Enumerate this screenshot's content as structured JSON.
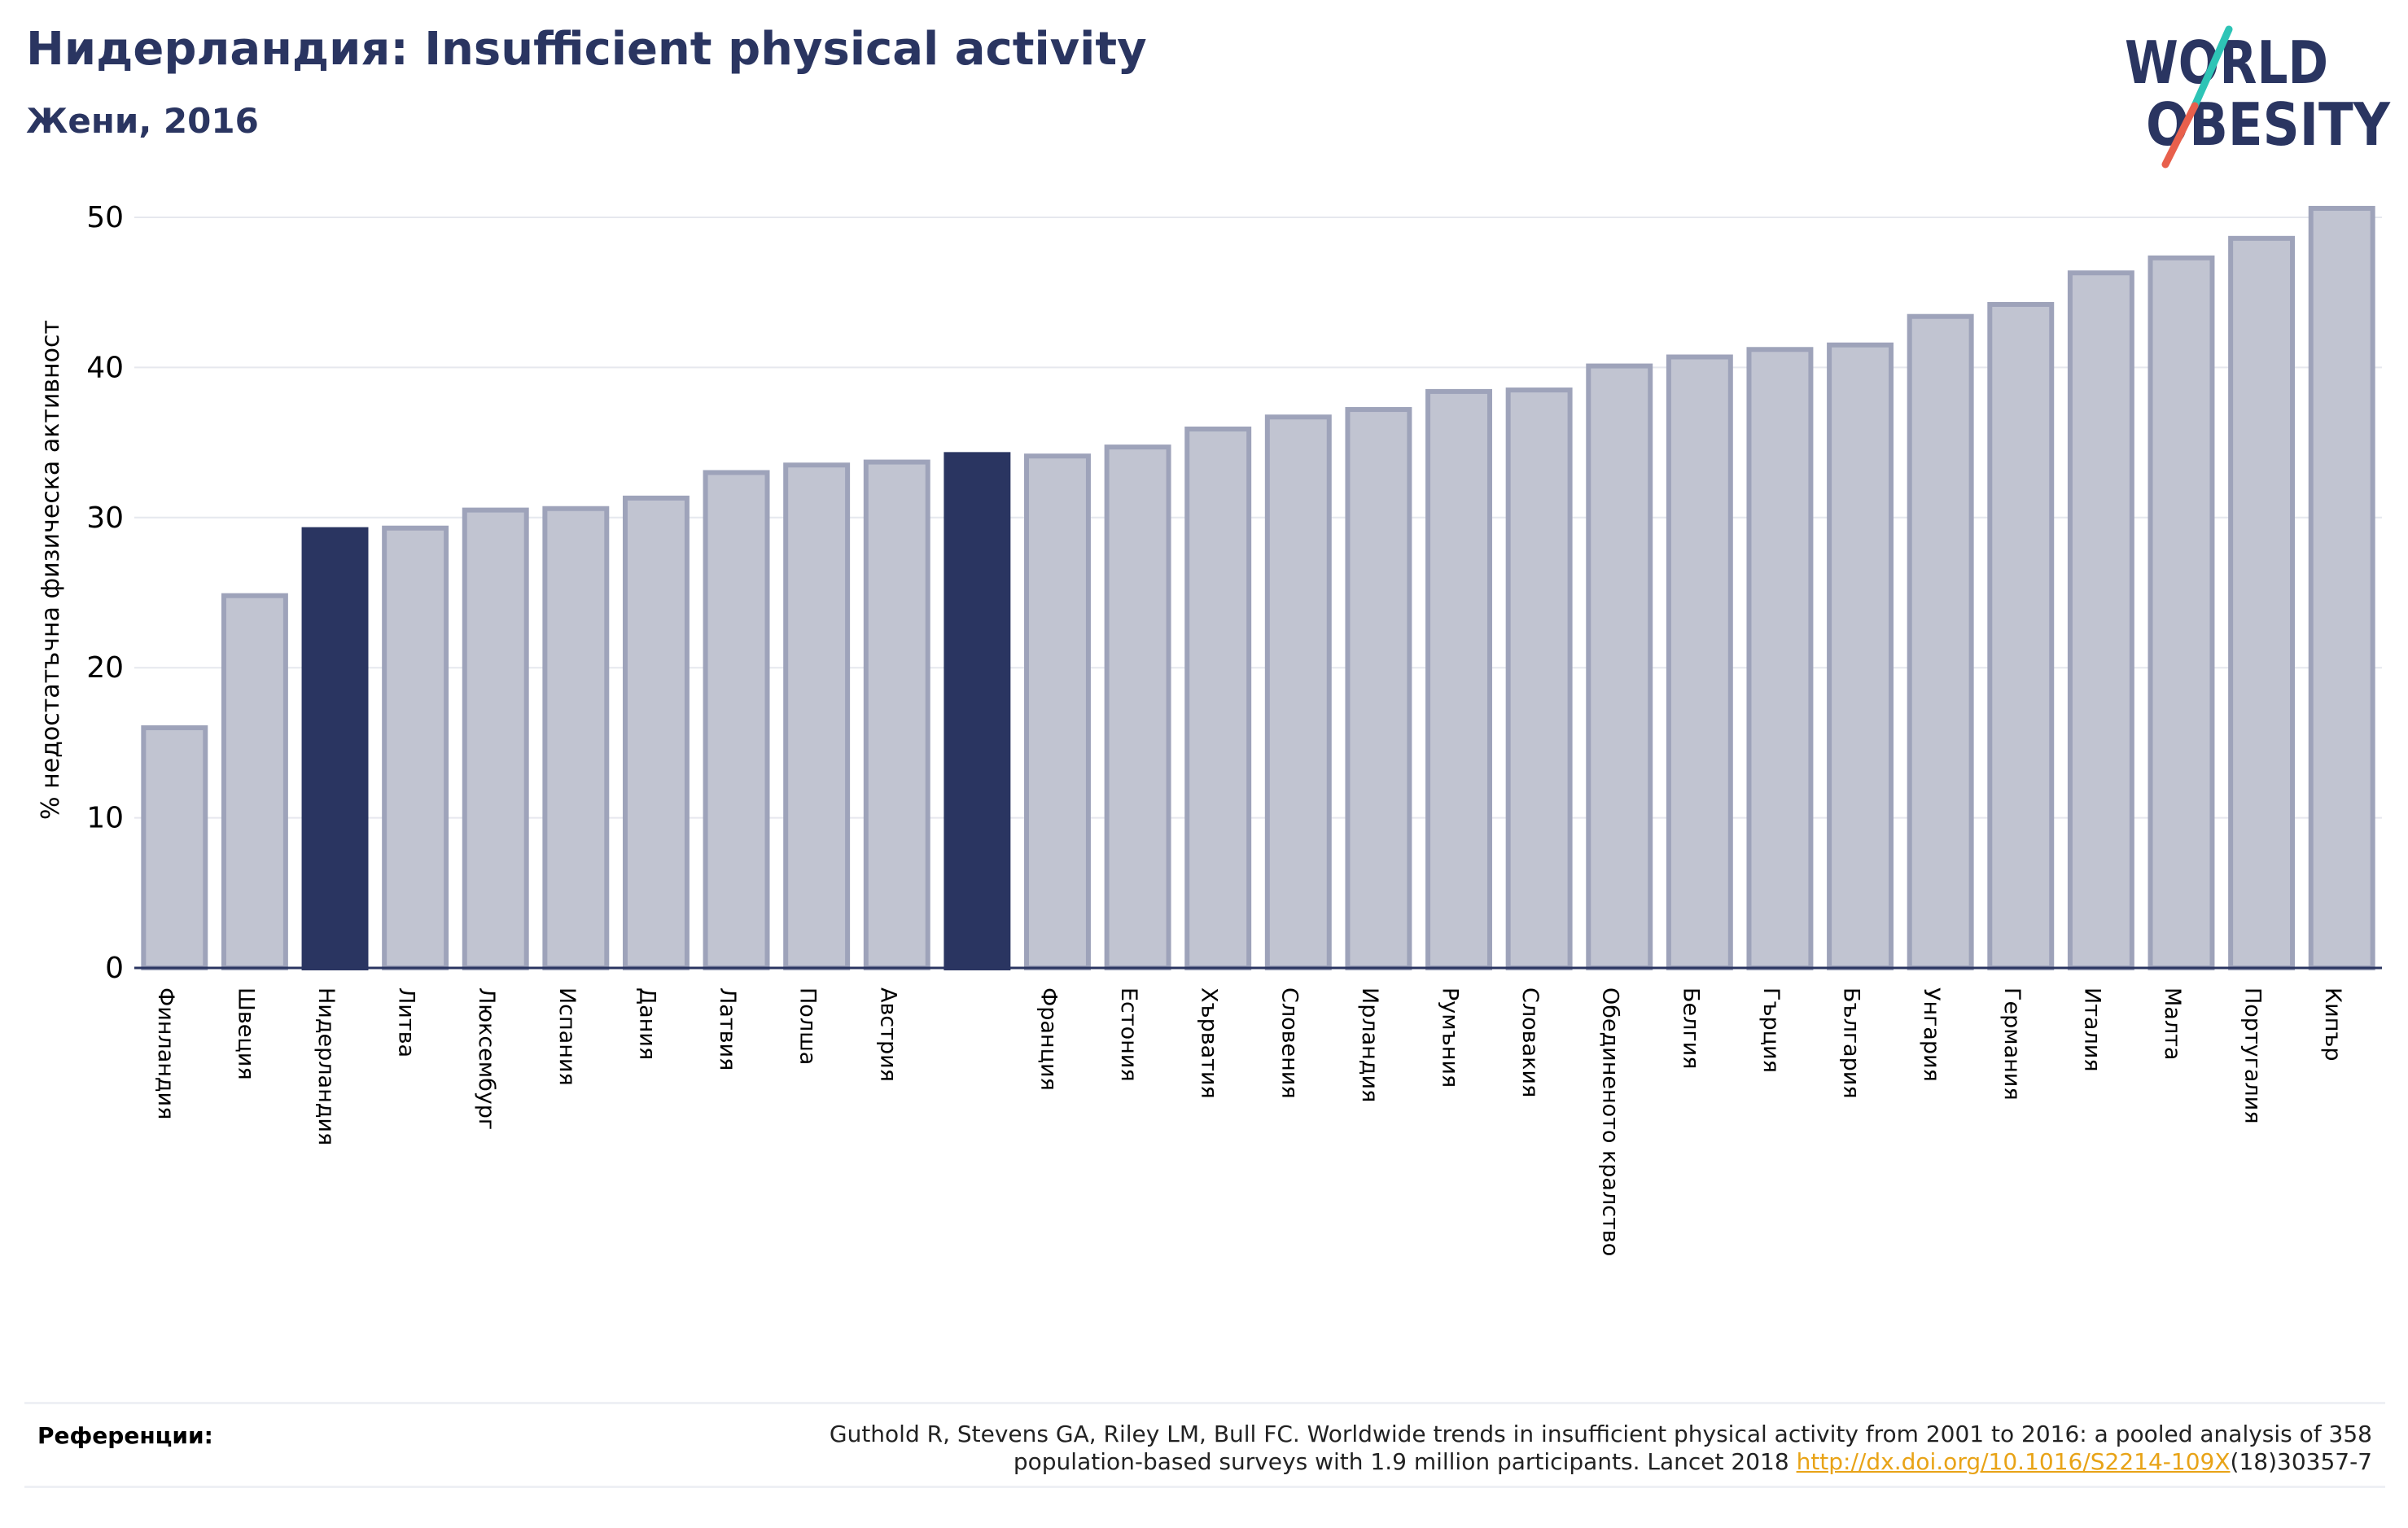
{
  "title": "Нидерландия: Insufficient physical activity",
  "subtitle": "Жени, 2016",
  "logo": {
    "line1": "WORLD",
    "line2": "OBESITY"
  },
  "references": {
    "label": "Референции:",
    "line1": "Guthold R, Stevens GA, Riley LM, Bull FC. Worldwide trends in insufficient physical activity from 2001 to 2016: a pooled analysis of 358",
    "line2_before": "population-based surveys with 1.9 million participants. Lancet 2018 ",
    "link": "http://dx.doi.org/10.1016/S2214-109X",
    "line2_after": "(18)30357-7"
  },
  "colors": {
    "title": "#2a3561",
    "bar": "#c1c4d1",
    "bar_border": "#9ea3ba",
    "highlight": "#2a3561",
    "link": "#e8a317",
    "logo_text": "#2a3561",
    "logo_slash_top": "#2ec4b6",
    "logo_slash_bottom": "#e8604c"
  },
  "chart_data": {
    "type": "bar",
    "ylabel": "% недостатъчна физическа активност",
    "xlabel": "",
    "ylim": [
      0,
      50
    ],
    "yticks": [
      0,
      10,
      20,
      30,
      40,
      50
    ],
    "grid": true,
    "categories": [
      "Финландия",
      "Швеция",
      "Нидерландия",
      "Литва",
      "Люксембург",
      "Испания",
      "Дания",
      "Латвия",
      "Полша",
      "Австрия",
      "",
      "Франция",
      "Естония",
      "Хърватия",
      "Словения",
      "Ирландия",
      "Румъния",
      "Словакия",
      "Обединеното кралство",
      "Белгия",
      "Гърция",
      "България",
      "Унгария",
      "Германия",
      "Италия",
      "Малта",
      "Португалия",
      "Кипър"
    ],
    "values": [
      16.0,
      24.8,
      29.2,
      29.3,
      30.5,
      30.6,
      31.3,
      33.0,
      33.5,
      33.7,
      34.2,
      34.1,
      34.7,
      35.9,
      36.7,
      37.2,
      38.4,
      38.5,
      40.1,
      40.7,
      41.2,
      41.5,
      43.4,
      44.2,
      46.3,
      47.3,
      48.6,
      50.6
    ],
    "highlighted": [
      2,
      10
    ]
  }
}
